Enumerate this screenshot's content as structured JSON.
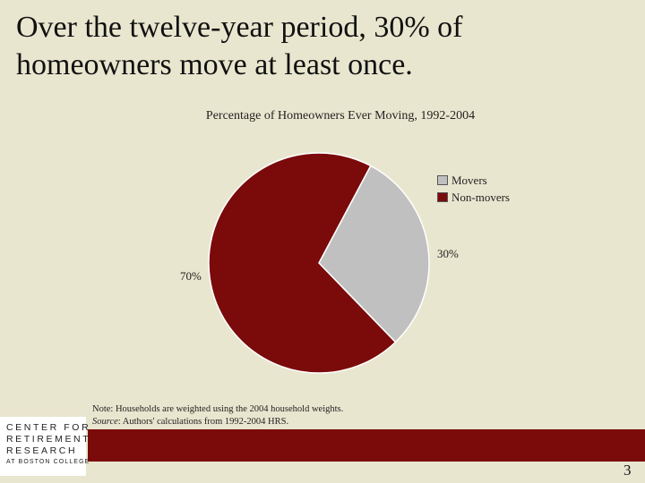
{
  "slide": {
    "title": "Over the twelve-year period, 30% of homeowners move at least once.",
    "page_number": "3"
  },
  "chart_data": {
    "type": "pie",
    "title": "Percentage of Homeowners Ever Moving, 1992-2004",
    "slices": [
      {
        "name": "Movers",
        "value": 30,
        "label": "30%",
        "color": "#c0c0c0"
      },
      {
        "name": "Non-movers",
        "value": 70,
        "label": "70%",
        "color": "#7b0a0a"
      }
    ],
    "legend_position": "right"
  },
  "note": {
    "line1": "Note: Households are weighted using the 2004 household weights.",
    "source_label": "Source",
    "source_text": ": Authors' calculations from 1992-2004 HRS."
  },
  "logo": {
    "line1": "CENTER FOR",
    "line2": "RETIREMENT",
    "line3": "RESEARCH",
    "line4": "AT BOSTON COLLEGE"
  },
  "colors": {
    "background": "#e9e6cf",
    "accent": "#7b0a0a"
  }
}
